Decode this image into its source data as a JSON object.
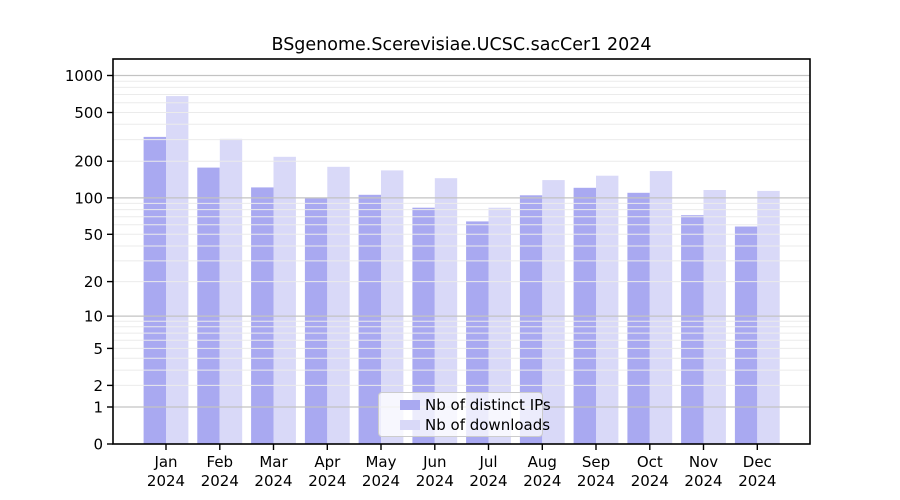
{
  "page": {
    "background": "#ffffff"
  },
  "chart_data": {
    "type": "bar",
    "title": "BSgenome.Scerevisiae.UCSC.sacCer1 2024",
    "year": "2024",
    "months": [
      "Jan",
      "Feb",
      "Mar",
      "Apr",
      "May",
      "Jun",
      "Jul",
      "Aug",
      "Sep",
      "Oct",
      "Nov",
      "Dec"
    ],
    "series": [
      {
        "name": "Nb of distinct IPs",
        "color": "#a9a9f1",
        "values": [
          316,
          177,
          122,
          100,
          106,
          83,
          64,
          105,
          121,
          110,
          72,
          58
        ]
      },
      {
        "name": "Nb of downloads",
        "color": "#d9d9f8",
        "values": [
          680,
          305,
          217,
          180,
          168,
          145,
          83,
          140,
          152,
          166,
          116,
          114
        ]
      }
    ],
    "y_axis": {
      "scale": "log10(1+x)",
      "ticks": [
        0,
        1,
        2,
        5,
        10,
        20,
        50,
        100,
        200,
        500,
        1000
      ],
      "label_color": "#000000"
    },
    "grid": {
      "minor_color": "#ebebeb",
      "major_color": "#c3c3c3",
      "major_at": [
        1,
        10,
        100,
        1000
      ],
      "drawn_over_bars": true
    },
    "frame_color": "#000000",
    "legend": {
      "position": "inside-bottom-center",
      "background": "rgba(255,255,255,0.78)",
      "border_color": "#cccccc"
    }
  }
}
